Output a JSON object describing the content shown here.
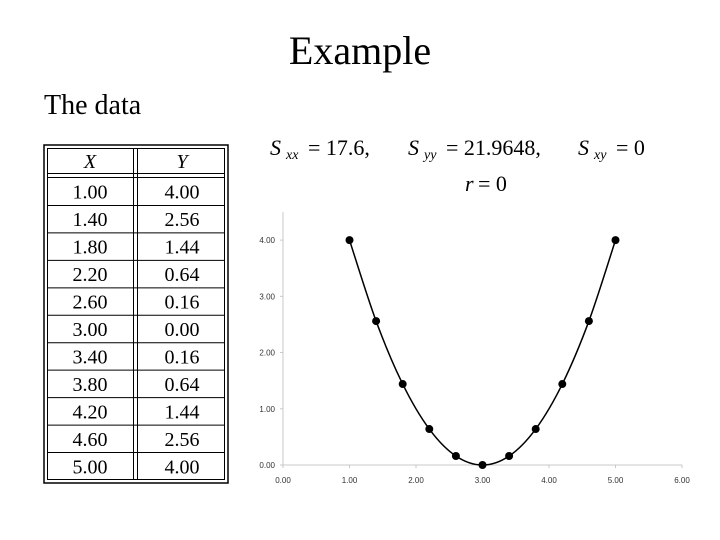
{
  "title": "Example",
  "subtitle": "The data",
  "table": {
    "header": [
      "X",
      "Y"
    ],
    "rows": [
      [
        "1.00",
        "4.00"
      ],
      [
        "1.40",
        "2.56"
      ],
      [
        "1.80",
        "1.44"
      ],
      [
        "2.20",
        "0.64"
      ],
      [
        "2.60",
        "0.16"
      ],
      [
        "3.00",
        "0.00"
      ],
      [
        "3.40",
        "0.16"
      ],
      [
        "3.80",
        "0.64"
      ],
      [
        "4.20",
        "1.44"
      ],
      [
        "4.60",
        "2.56"
      ],
      [
        "5.00",
        "4.00"
      ]
    ]
  },
  "stats": [
    {
      "symbol": "S",
      "sub": "xx",
      "value": "= 17.6,"
    },
    {
      "symbol": "S",
      "sub": "yy",
      "value": "= 21.9648,"
    },
    {
      "symbol": "S",
      "sub": "xy",
      "value": "= 0"
    },
    {
      "symbol": "r",
      "value": "= 0"
    }
  ],
  "chart_data": {
    "type": "line",
    "color": "#000000",
    "smooth": true,
    "markers": true,
    "x": [
      1.0,
      1.4,
      1.8,
      2.2,
      2.6,
      3.0,
      3.4,
      3.8,
      4.2,
      4.6,
      5.0
    ],
    "values": [
      4.0,
      2.56,
      1.44,
      0.64,
      0.16,
      0.0,
      0.16,
      0.64,
      1.44,
      2.56,
      4.0
    ],
    "xlim": [
      0,
      6
    ],
    "xticks": [
      {
        "value": 0,
        "label": "0.00"
      },
      {
        "value": 1,
        "label": "1.00"
      },
      {
        "value": 2,
        "label": "2.00"
      },
      {
        "value": 3,
        "label": "3.00"
      },
      {
        "value": 4,
        "label": "4.00"
      },
      {
        "value": 5,
        "label": "5.00"
      },
      {
        "value": 6,
        "label": "6.00"
      }
    ],
    "ylim": [
      0,
      4.5
    ],
    "yticks": [
      {
        "value": 0,
        "label": "0.00"
      },
      {
        "value": 1,
        "label": "1.00"
      },
      {
        "value": 2,
        "label": "2.00"
      },
      {
        "value": 3,
        "label": "3.00"
      },
      {
        "value": 4,
        "label": "4.00"
      }
    ]
  }
}
